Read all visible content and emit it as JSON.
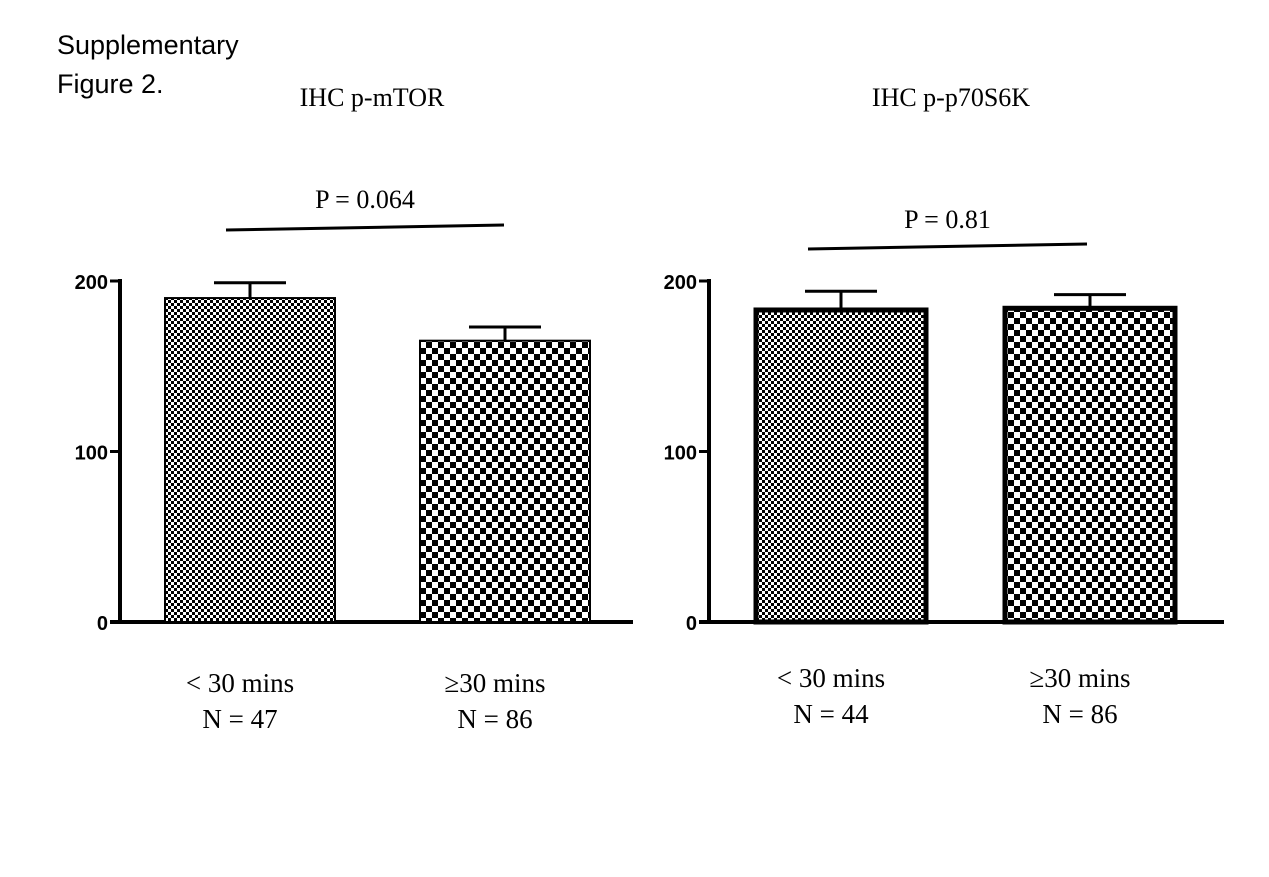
{
  "figure_label": {
    "line1": "Supplementary",
    "line2": "Figure 2."
  },
  "chart_data": [
    {
      "type": "bar",
      "title": "IHC p-mTOR",
      "categories": [
        "< 30 mins",
        "≥30 mins"
      ],
      "n_labels": [
        "N = 47",
        "N = 86"
      ],
      "values": [
        190,
        165
      ],
      "error_upper": [
        199,
        173
      ],
      "ylim": [
        0,
        200
      ],
      "yticks": [
        0,
        100,
        200
      ],
      "annotation": "P = 0.064",
      "xlabel": "",
      "ylabel": ""
    },
    {
      "type": "bar",
      "title": "IHC p-p70S6K",
      "categories": [
        "< 30 mins",
        "≥30 mins"
      ],
      "n_labels": [
        "N = 44",
        "N = 86"
      ],
      "values": [
        183,
        184
      ],
      "error_upper": [
        194,
        192
      ],
      "ylim": [
        0,
        200
      ],
      "yticks": [
        0,
        100,
        200
      ],
      "annotation": "P = 0.81",
      "xlabel": "",
      "ylabel": ""
    }
  ]
}
